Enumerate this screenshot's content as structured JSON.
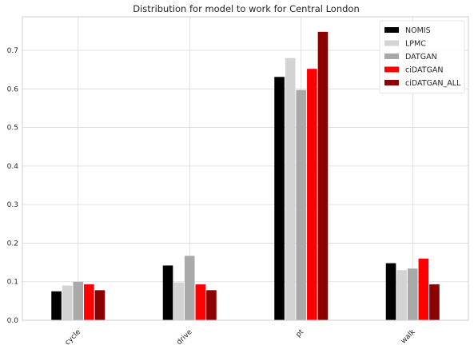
{
  "chart_data": {
    "type": "bar",
    "title": "Distribution for model to work for Central London",
    "xlabel": "",
    "ylabel": "",
    "categories": [
      "cycle",
      "drive",
      "pt",
      "walk"
    ],
    "ylim": [
      0,
      0.787
    ],
    "yticks": [
      0.0,
      0.1,
      0.2,
      0.3,
      0.4,
      0.5,
      0.6,
      0.7
    ],
    "ytick_labels": [
      "0.0",
      "0.1",
      "0.2",
      "0.3",
      "0.4",
      "0.5",
      "0.6",
      "0.7"
    ],
    "grid": true,
    "legend_position": "top-right",
    "x_tick_rotation": "45deg",
    "series": [
      {
        "name": "NOMIS",
        "color": "#000000",
        "values": [
          0.075,
          0.142,
          0.631,
          0.148
        ]
      },
      {
        "name": "LPMC",
        "color": "#d3d3d3",
        "values": [
          0.09,
          0.098,
          0.68,
          0.13
        ]
      },
      {
        "name": "DATGAN",
        "color": "#a9a9a9",
        "values": [
          0.1,
          0.167,
          0.597,
          0.134
        ]
      },
      {
        "name": "ciDATGAN",
        "color": "#ff0000",
        "values": [
          0.093,
          0.093,
          0.652,
          0.16
        ]
      },
      {
        "name": "ciDATGAN_ALL",
        "color": "#8b0000",
        "values": [
          0.078,
          0.078,
          0.748,
          0.093
        ]
      }
    ]
  }
}
